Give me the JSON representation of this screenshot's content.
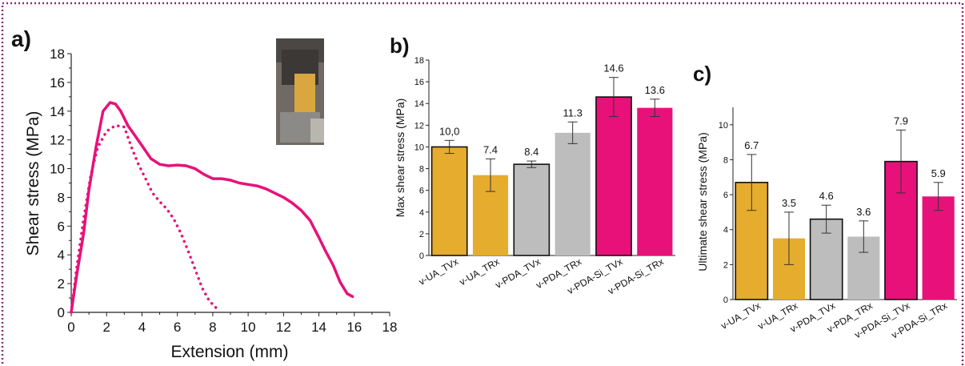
{
  "colors": {
    "border": "#8a2a8a",
    "magenta": "#e8117a",
    "gold": "#e6ac2d",
    "gray": "#bdbdbd"
  },
  "chart_data": [
    {
      "panel": "a)",
      "type": "line",
      "xlabel": "Extension (mm)",
      "ylabel": "Shear stress (MPa)",
      "xlim": [
        0,
        18
      ],
      "ylim": [
        0,
        18
      ],
      "xticks": [
        0,
        2,
        4,
        6,
        8,
        10,
        12,
        14,
        16,
        18
      ],
      "yticks": [
        0,
        2,
        4,
        6,
        8,
        10,
        12,
        14,
        16,
        18
      ],
      "inset": "photo of specimen in grips (top-right)",
      "series": [
        {
          "style": "solid",
          "color": "#e8117a",
          "points": [
            [
              0,
              0
            ],
            [
              0.3,
              2.5
            ],
            [
              0.7,
              5.5
            ],
            [
              1.0,
              8.5
            ],
            [
              1.4,
              11.5
            ],
            [
              1.8,
              14.0
            ],
            [
              2.2,
              14.6
            ],
            [
              2.5,
              14.5
            ],
            [
              2.8,
              14.0
            ],
            [
              3.2,
              13.0
            ],
            [
              3.6,
              12.3
            ],
            [
              4.0,
              11.6
            ],
            [
              4.5,
              10.7
            ],
            [
              5.0,
              10.3
            ],
            [
              5.5,
              10.2
            ],
            [
              6.0,
              10.25
            ],
            [
              6.5,
              10.2
            ],
            [
              7.0,
              10.0
            ],
            [
              7.5,
              9.6
            ],
            [
              8.0,
              9.3
            ],
            [
              8.5,
              9.3
            ],
            [
              9.0,
              9.2
            ],
            [
              9.5,
              9.0
            ],
            [
              10.0,
              8.9
            ],
            [
              10.5,
              8.8
            ],
            [
              11.0,
              8.6
            ],
            [
              11.5,
              8.3
            ],
            [
              12.0,
              8.0
            ],
            [
              12.5,
              7.6
            ],
            [
              13.0,
              7.1
            ],
            [
              13.5,
              6.4
            ],
            [
              14.0,
              5.2
            ],
            [
              14.4,
              4.2
            ],
            [
              14.8,
              3.3
            ],
            [
              15.2,
              2.1
            ],
            [
              15.6,
              1.3
            ],
            [
              15.9,
              1.1
            ]
          ]
        },
        {
          "style": "dotted",
          "color": "#e8117a",
          "points": [
            [
              0,
              0
            ],
            [
              0.3,
              3.0
            ],
            [
              0.7,
              6.5
            ],
            [
              1.1,
              9.5
            ],
            [
              1.5,
              11.5
            ],
            [
              2.0,
              12.6
            ],
            [
              2.5,
              13.0
            ],
            [
              3.0,
              12.9
            ],
            [
              3.4,
              11.5
            ],
            [
              3.8,
              10.3
            ],
            [
              4.2,
              9.3
            ],
            [
              4.6,
              8.3
            ],
            [
              5.0,
              7.7
            ],
            [
              5.4,
              7.2
            ],
            [
              5.8,
              6.5
            ],
            [
              6.2,
              5.5
            ],
            [
              6.6,
              4.3
            ],
            [
              7.0,
              3.0
            ],
            [
              7.4,
              1.7
            ],
            [
              7.8,
              0.8
            ],
            [
              8.2,
              0.3
            ],
            [
              8.4,
              0.2
            ]
          ]
        }
      ]
    },
    {
      "panel": "b)",
      "type": "bar",
      "ylabel": "Max shear stress (MPa)",
      "ylim": [
        0,
        18
      ],
      "yticks": [
        0,
        2,
        4,
        6,
        8,
        10,
        12,
        14,
        16,
        18
      ],
      "categories": [
        "v-UA_TVx",
        "v-UA_TRx",
        "v-PDA_TVx",
        "v-PDA_TRx",
        "v-PDA-Si_TVx",
        "v-PDA-Si_TRx"
      ],
      "values": [
        10.0,
        7.4,
        8.4,
        11.3,
        14.6,
        13.6
      ],
      "value_labels": [
        "10,0",
        "7.4",
        "8.4",
        "11.3",
        "14.6",
        "13.6"
      ],
      "errors": [
        0.6,
        1.5,
        0.3,
        1.0,
        1.8,
        0.8
      ],
      "bar_colors": [
        "#e6ac2d",
        "#e6ac2d",
        "#bdbdbd",
        "#bdbdbd",
        "#e8117a",
        "#e8117a"
      ],
      "outlined": [
        true,
        false,
        true,
        false,
        true,
        false
      ]
    },
    {
      "panel": "c)",
      "type": "bar",
      "ylabel": "Ultimate shear stress (MPa)",
      "ylim": [
        0,
        11
      ],
      "yticks": [
        0,
        2,
        4,
        6,
        8,
        10
      ],
      "categories": [
        "v-UA_TVx",
        "v-UA_TRx",
        "v-PDA_TVx",
        "v-PDA_TRx",
        "v-PDA-Si_TVx",
        "v-PDA-Si_TRx"
      ],
      "values": [
        6.7,
        3.5,
        4.6,
        3.6,
        7.9,
        5.9
      ],
      "value_labels": [
        "6.7",
        "3.5",
        "4.6",
        "3.6",
        "7.9",
        "5.9"
      ],
      "errors": [
        1.6,
        1.5,
        0.8,
        0.9,
        1.8,
        0.8
      ],
      "bar_colors": [
        "#e6ac2d",
        "#e6ac2d",
        "#bdbdbd",
        "#bdbdbd",
        "#e8117a",
        "#e8117a"
      ],
      "outlined": [
        true,
        false,
        true,
        false,
        true,
        false
      ]
    }
  ]
}
